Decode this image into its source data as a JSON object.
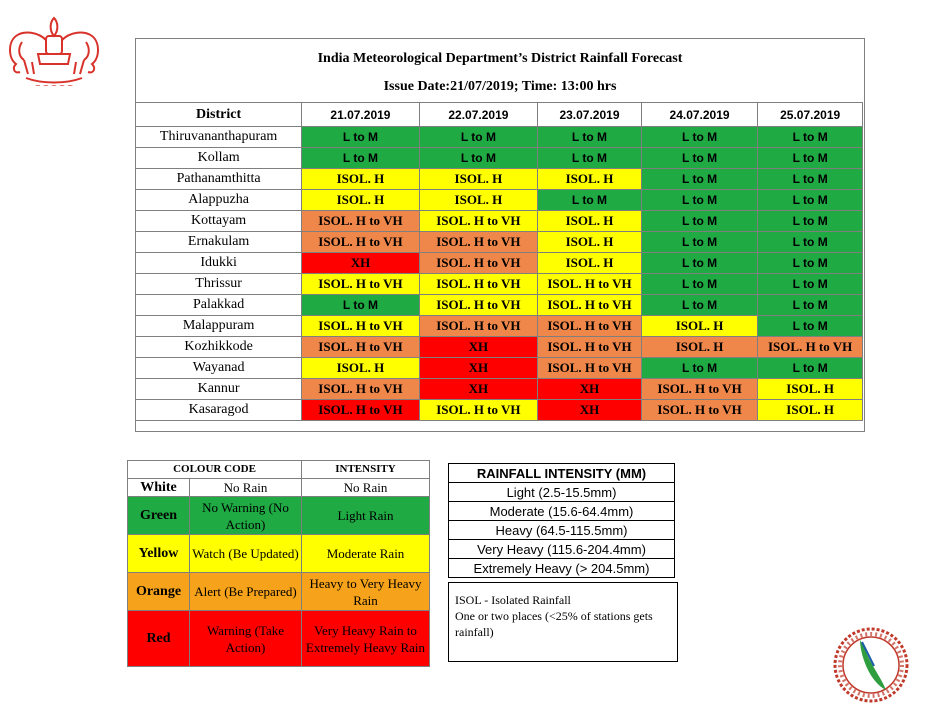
{
  "header": {
    "title": "India Meteorological Department’s District Rainfall Forecast",
    "issue": "Issue Date:21/07/2019; Time:  13:00 hrs"
  },
  "colors": {
    "G": "#1faa44",
    "Y": "#ffff00",
    "O": "#f0874a",
    "R": "#ff0000"
  },
  "forecast": {
    "district_label": "District",
    "dates": [
      "21.07.2019",
      "22.07.2019",
      "23.07.2019",
      "24.07.2019",
      "25.07.2019"
    ],
    "rows": [
      {
        "district": "Thiruvananthapuram",
        "cells": [
          {
            "t": "L to M",
            "c": "G"
          },
          {
            "t": "L to M",
            "c": "G"
          },
          {
            "t": "L to M",
            "c": "G"
          },
          {
            "t": "L to M",
            "c": "G"
          },
          {
            "t": "L to M",
            "c": "G"
          }
        ]
      },
      {
        "district": "Kollam",
        "cells": [
          {
            "t": "L to M",
            "c": "G"
          },
          {
            "t": "L to M",
            "c": "G"
          },
          {
            "t": "L to M",
            "c": "G"
          },
          {
            "t": "L to M",
            "c": "G"
          },
          {
            "t": "L to M",
            "c": "G"
          }
        ]
      },
      {
        "district": "Pathanamthitta",
        "cells": [
          {
            "t": "ISOL. H",
            "c": "Y"
          },
          {
            "t": "ISOL.  H",
            "c": "Y"
          },
          {
            "t": "ISOL. H",
            "c": "Y"
          },
          {
            "t": "L to M",
            "c": "G"
          },
          {
            "t": "L to M",
            "c": "G"
          }
        ]
      },
      {
        "district": "Alappuzha",
        "cells": [
          {
            "t": "ISOL. H",
            "c": "Y"
          },
          {
            "t": "ISOL. H",
            "c": "Y"
          },
          {
            "t": "L to M",
            "c": "G"
          },
          {
            "t": "L to M",
            "c": "G"
          },
          {
            "t": "L to M",
            "c": "G"
          }
        ]
      },
      {
        "district": "Kottayam",
        "cells": [
          {
            "t": "ISOL. H to VH",
            "c": "O"
          },
          {
            "t": "ISOL. H to VH",
            "c": "Y"
          },
          {
            "t": "ISOL. H",
            "c": "Y"
          },
          {
            "t": "L to M",
            "c": "G"
          },
          {
            "t": "L to M",
            "c": "G"
          }
        ]
      },
      {
        "district": "Ernakulam",
        "cells": [
          {
            "t": "ISOL. H to VH",
            "c": "O"
          },
          {
            "t": "ISOL. H to VH",
            "c": "O"
          },
          {
            "t": "ISOL. H",
            "c": "Y"
          },
          {
            "t": "L to M",
            "c": "G"
          },
          {
            "t": "L to M",
            "c": "G"
          }
        ]
      },
      {
        "district": "Idukki",
        "cells": [
          {
            "t": "XH",
            "c": "R"
          },
          {
            "t": "ISOL. H to VH",
            "c": "O"
          },
          {
            "t": "ISOL. H",
            "c": "Y"
          },
          {
            "t": "L to M",
            "c": "G"
          },
          {
            "t": "L to M",
            "c": "G"
          }
        ]
      },
      {
        "district": "Thrissur",
        "cells": [
          {
            "t": "ISOL. H to VH",
            "c": "Y"
          },
          {
            "t": "ISOL. H to VH",
            "c": "Y"
          },
          {
            "t": "ISOL. H to VH",
            "c": "Y"
          },
          {
            "t": "L to M",
            "c": "G"
          },
          {
            "t": "L to M",
            "c": "G"
          }
        ]
      },
      {
        "district": "Palakkad",
        "cells": [
          {
            "t": "L to M",
            "c": "G"
          },
          {
            "t": "ISOL. H to VH",
            "c": "Y"
          },
          {
            "t": "ISOL. H to VH",
            "c": "Y"
          },
          {
            "t": "L to M",
            "c": "G"
          },
          {
            "t": "L to M",
            "c": "G"
          }
        ]
      },
      {
        "district": "Malappuram",
        "cells": [
          {
            "t": "ISOL. H to VH",
            "c": "Y"
          },
          {
            "t": "ISOL. H to VH",
            "c": "O"
          },
          {
            "t": "ISOL. H to VH",
            "c": "O"
          },
          {
            "t": "ISOL. H",
            "c": "Y"
          },
          {
            "t": "L to M",
            "c": "G"
          }
        ]
      },
      {
        "district": "Kozhikkode",
        "cells": [
          {
            "t": "ISOL. H to VH",
            "c": "O"
          },
          {
            "t": "XH",
            "c": "R"
          },
          {
            "t": "ISOL. H to VH",
            "c": "O"
          },
          {
            "t": "ISOL. H",
            "c": "O"
          },
          {
            "t": "ISOL. H to VH",
            "c": "O"
          }
        ]
      },
      {
        "district": "Wayanad",
        "cells": [
          {
            "t": "ISOL. H",
            "c": "Y"
          },
          {
            "t": "XH",
            "c": "R"
          },
          {
            "t": "ISOL. H to VH",
            "c": "O"
          },
          {
            "t": "L to M",
            "c": "G"
          },
          {
            "t": "L to M",
            "c": "G"
          }
        ]
      },
      {
        "district": "Kannur",
        "cells": [
          {
            "t": "ISOL. H to VH",
            "c": "O"
          },
          {
            "t": "XH",
            "c": "R"
          },
          {
            "t": "XH",
            "c": "R"
          },
          {
            "t": "ISOL. H to VH",
            "c": "O"
          },
          {
            "t": "ISOL. H",
            "c": "Y"
          }
        ]
      },
      {
        "district": "Kasaragod",
        "cells": [
          {
            "t": "ISOL. H to VH",
            "c": "R"
          },
          {
            "t": "ISOL. H to VH",
            "c": "Y"
          },
          {
            "t": "XH",
            "c": "R"
          },
          {
            "t": "ISOL. H to VH",
            "c": "O"
          },
          {
            "t": "ISOL. H",
            "c": "Y"
          }
        ]
      }
    ]
  },
  "legend": {
    "col1": "COLOUR  CODE",
    "col3": "INTENSITY",
    "rows": [
      {
        "name": "White",
        "meaning": "No Rain",
        "intensity": "No Rain",
        "cls": "W"
      },
      {
        "name": "Green",
        "meaning": "No Warning  (No Action)",
        "intensity": "Light  Rain",
        "cls": "G"
      },
      {
        "name": "Yellow",
        "meaning": "Watch  (Be Updated)",
        "intensity": "Moderate Rain",
        "cls": "Y"
      },
      {
        "name": "Orange",
        "meaning": "Alert  (Be Prepared)",
        "intensity": "Heavy  to Very Heavy  Rain",
        "cls": "O"
      },
      {
        "name": "Red",
        "meaning": "Warning  (Take Action)",
        "intensity": "Very Heavy Rain to Extremely  Heavy Rain",
        "cls": "R"
      }
    ]
  },
  "intensity_table": {
    "title": "RAINFALL INTENSITY (MM)",
    "rows": [
      "Light (2.5-15.5mm)",
      "Moderate (15.6-64.4mm)",
      "Heavy (64.5-115.5mm)",
      "Very Heavy (115.6-204.4mm)",
      "Extremely Heavy (> 204.5mm)"
    ]
  },
  "isol_note": {
    "line1": "ISOL - Isolated Rainfall",
    "line2": "One or two places (<25% of stations gets rainfall)"
  }
}
